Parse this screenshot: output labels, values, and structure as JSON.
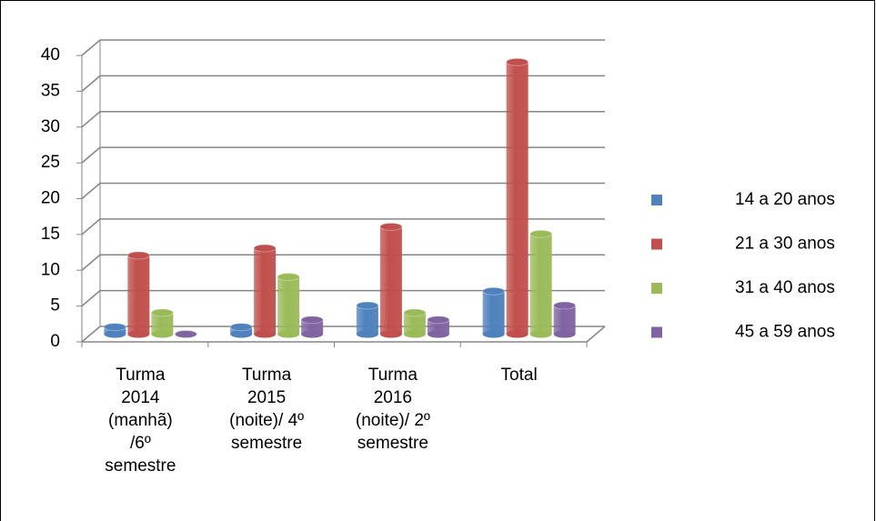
{
  "chart_data": {
    "type": "bar",
    "style": "3d-cylinder",
    "categories": [
      "Turma\n2014\n(manhã)\n/6º\nsemestre",
      "Turma\n2015\n(noite)/ 4º\nsemestre",
      "Turma\n2016\n(noite)/ 2º\nsemestre",
      "Total"
    ],
    "series": [
      {
        "name": "14 a 20 anos",
        "color": "#4f81bd",
        "values": [
          1,
          1,
          4,
          6
        ]
      },
      {
        "name": "21 a 30 anos",
        "color": "#c0504d",
        "values": [
          11,
          12,
          15,
          38
        ]
      },
      {
        "name": "31 a 40 anos",
        "color": "#9bbb59",
        "values": [
          3,
          8,
          3,
          14
        ]
      },
      {
        "name": "45 a 59 anos",
        "color": "#8064a2",
        "values": [
          0,
          2,
          2,
          4
        ]
      }
    ],
    "ylim": [
      0,
      40
    ],
    "yticks": [
      0,
      5,
      10,
      15,
      20,
      25,
      30,
      35,
      40
    ],
    "grid": true,
    "legend": "right"
  }
}
